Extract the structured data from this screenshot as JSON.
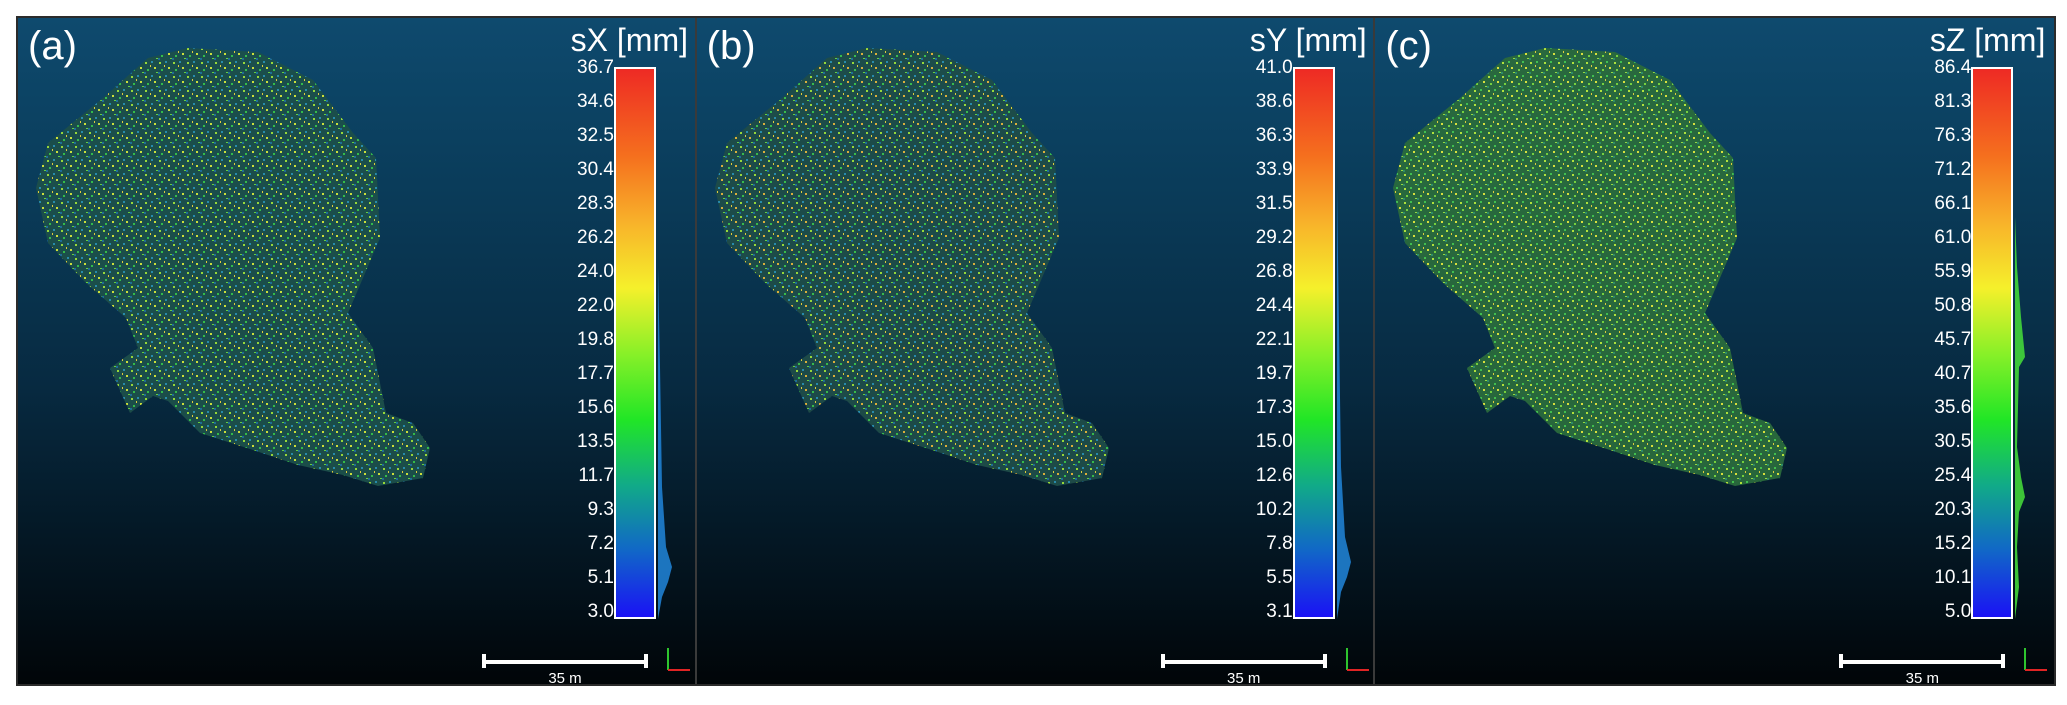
{
  "scale_bar_label": "35 m",
  "colormap": [
    "#1a12f5",
    "#1166c8",
    "#11aa88",
    "#21e626",
    "#88f028",
    "#f5f02b",
    "#f8b22a",
    "#f5701e",
    "#ee2a24"
  ],
  "panels": [
    {
      "letter": "(a)",
      "title": "sX [mm]",
      "ticks": [
        "36.7",
        "34.6",
        "32.5",
        "30.4",
        "28.3",
        "26.2",
        "24.0",
        "22.0",
        "19.8",
        "17.7",
        "15.6",
        "13.5",
        "11.7",
        "9.3",
        "7.2",
        "5.1",
        "3.0"
      ]
    },
    {
      "letter": "(b)",
      "title": "sY [mm]",
      "ticks": [
        "41.0",
        "38.6",
        "36.3",
        "33.9",
        "31.5",
        "29.2",
        "26.8",
        "24.4",
        "22.1",
        "19.7",
        "17.3",
        "15.0",
        "12.6",
        "10.2",
        "7.8",
        "5.5",
        "3.1"
      ]
    },
    {
      "letter": "(c)",
      "title": "sZ [mm]",
      "ticks": [
        "86.4",
        "81.3",
        "76.3",
        "71.2",
        "66.1",
        "61.0",
        "55.9",
        "50.8",
        "45.7",
        "40.7",
        "35.6",
        "30.5",
        "25.4",
        "20.3",
        "15.2",
        "10.1",
        "5.0"
      ]
    }
  ]
}
